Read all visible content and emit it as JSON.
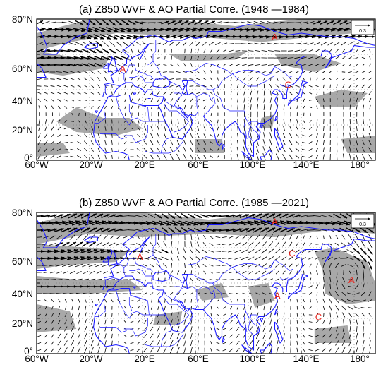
{
  "panels": [
    {
      "title": "(a) Z850 WVF & AO Partial Corre. (1948 —1984)",
      "lat_labels": [
        "80°N",
        "60°N",
        "40°N",
        "20°N",
        "0°"
      ],
      "lon_labels": [
        "60°W",
        "20°W",
        "20°E",
        "60°E",
        "100°E",
        "140°E",
        "180°"
      ],
      "reference_vector": "0.3",
      "markers": [
        {
          "text": "A",
          "lon": 120,
          "lat": 70
        },
        {
          "text": "A",
          "lon": 5,
          "lat": 52
        },
        {
          "text": "C",
          "lon": 130,
          "lat": 43
        }
      ]
    },
    {
      "title": "(b) Z850 WVF & AO Partial Corre. (1985 —2021)",
      "lat_labels": [
        "80°N",
        "60°N",
        "40°N",
        "20°N",
        "0°"
      ],
      "lon_labels": [
        "60°W",
        "20°W",
        "20°E",
        "60°E",
        "100°E",
        "140°E",
        "180°"
      ],
      "reference_vector": "0.3",
      "markers": [
        {
          "text": "A",
          "lon": 120,
          "lat": 75
        },
        {
          "text": "A",
          "lon": 18,
          "lat": 55
        },
        {
          "text": "C",
          "lon": 133,
          "lat": 57
        },
        {
          "text": "A",
          "lon": 178,
          "lat": 42
        },
        {
          "text": "A",
          "lon": 122,
          "lat": 33
        },
        {
          "text": "C",
          "lon": 153,
          "lat": 21
        }
      ]
    }
  ],
  "colors": {
    "coast": "#1a1aff",
    "shade": "#a8a8a8",
    "vector": "#000000",
    "marker": "#e8241c",
    "frame": "#000000"
  }
}
